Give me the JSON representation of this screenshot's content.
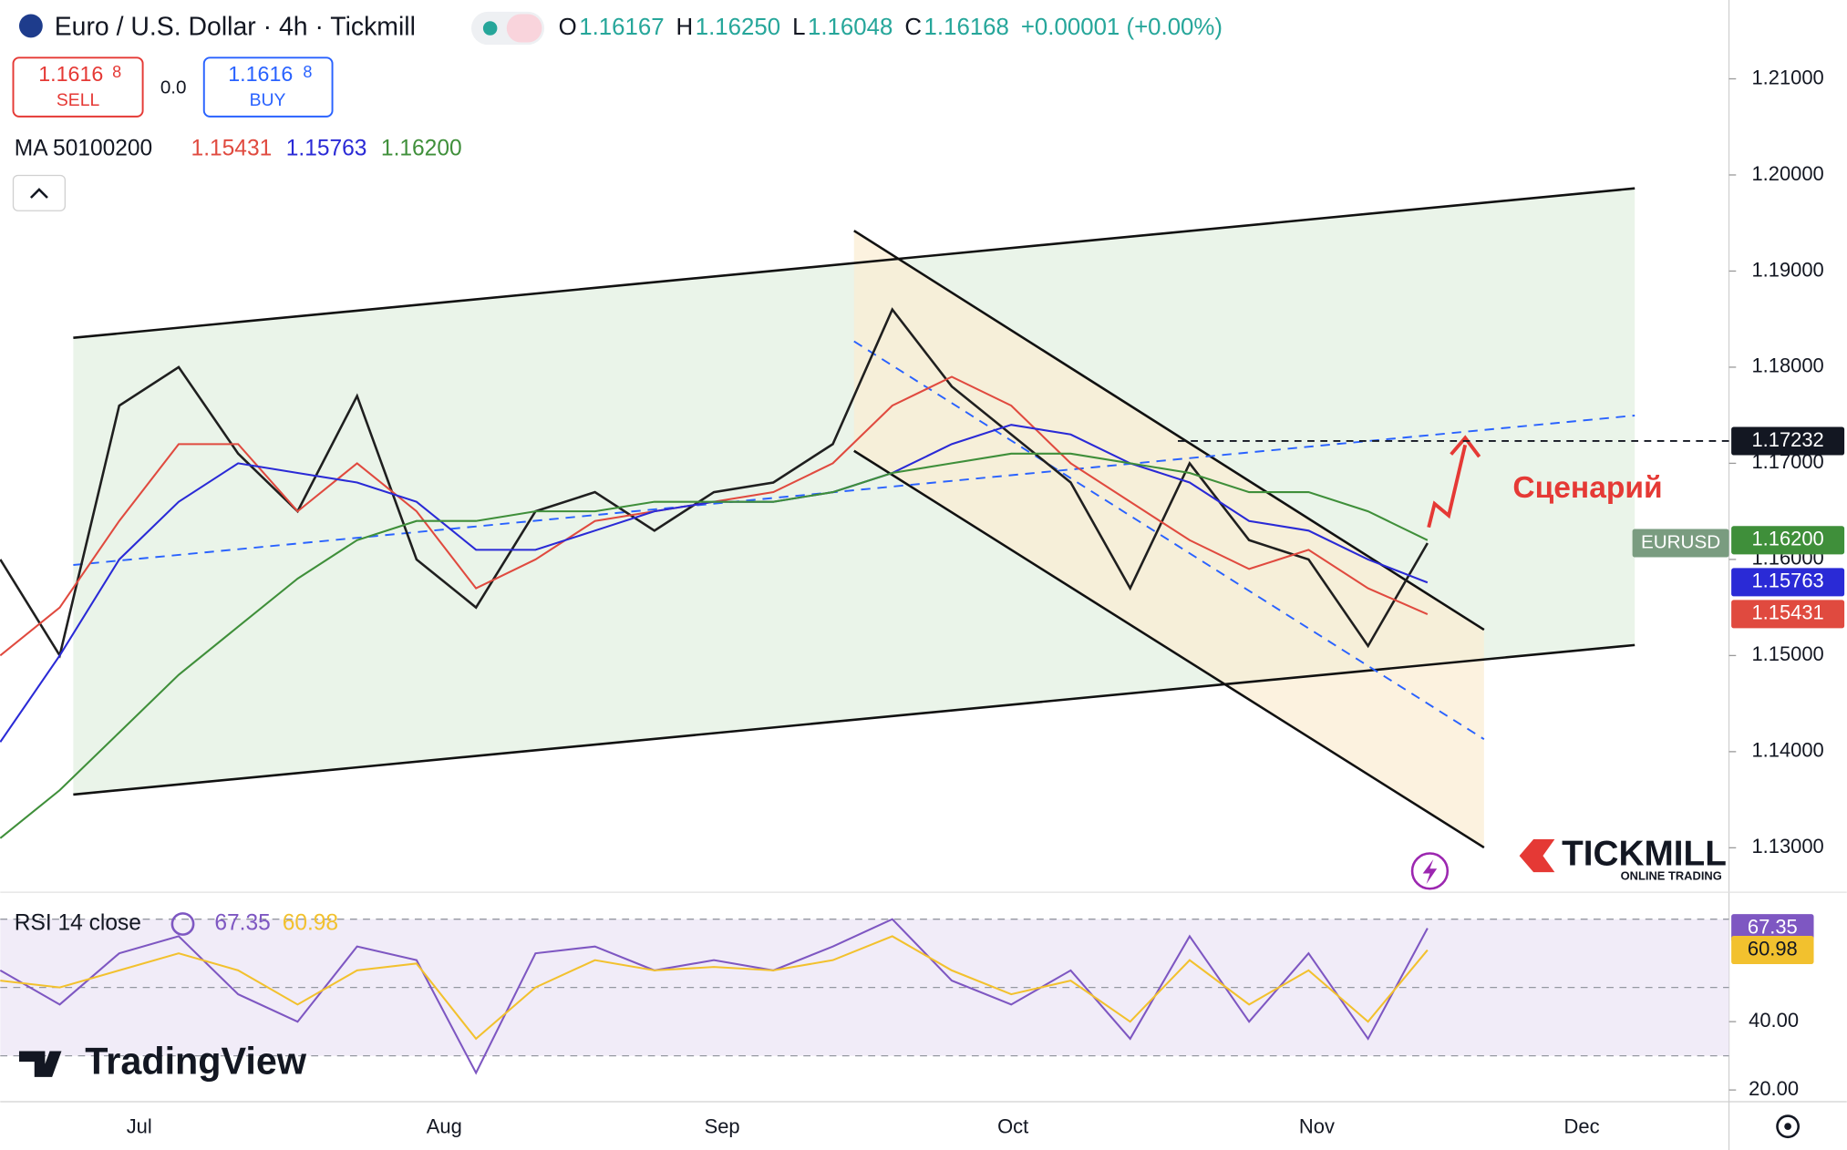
{
  "header": {
    "title": "Euro / U.S. Dollar · 4h · Tickmill",
    "ohlc": [
      {
        "label": "O",
        "value": "1.16167"
      },
      {
        "label": "H",
        "value": "1.16250"
      },
      {
        "label": "L",
        "value": "1.16048"
      },
      {
        "label": "C",
        "value": "1.16168"
      }
    ],
    "change": "+0.00001 (+0.00%)",
    "sell": {
      "price": "1.1616",
      "pip": "8",
      "label": "SELL"
    },
    "spread": "0.0",
    "buy": {
      "price": "1.1616",
      "pip": "8",
      "label": "BUY"
    },
    "ma_label": "MA 50100200"
  },
  "annotation": "Сценарий",
  "symbol_tag": "EURUSD",
  "logos": {
    "broker": "TICKMILL",
    "broker_sub": "ONLINE TRADING",
    "platform": "TradingView"
  },
  "chart_data": [
    {
      "type": "line",
      "ylim": [
        1.1255,
        1.2182
      ],
      "yticks": [
        {
          "value": 1.21,
          "label": "1.21000"
        },
        {
          "value": 1.2,
          "label": "1.20000"
        },
        {
          "value": 1.19,
          "label": "1.19000"
        },
        {
          "value": 1.18,
          "label": "1.18000"
        },
        {
          "value": 1.17,
          "label": "1.17000"
        },
        {
          "value": 1.16,
          "label": "1.16000"
        },
        {
          "value": 1.15,
          "label": "1.15000"
        },
        {
          "value": 1.14,
          "label": "1.14000"
        },
        {
          "value": 1.13,
          "label": "1.13000"
        }
      ],
      "time_labels": [
        "Jul",
        "Aug",
        "Sep",
        "Oct",
        "Nov",
        "Dec"
      ],
      "level": {
        "value": 1.17232,
        "label": "1.17232"
      },
      "series": [
        {
          "name": "EURUSD",
          "color": "#1f1f1f",
          "values": [
            1.16,
            1.15,
            1.176,
            1.18,
            1.171,
            1.165,
            1.177,
            1.16,
            1.155,
            1.165,
            1.167,
            1.163,
            1.167,
            1.168,
            1.172,
            1.186,
            1.178,
            1.173,
            1.168,
            1.157,
            1.17,
            1.162,
            1.16,
            1.151,
            1.1617
          ]
        },
        {
          "name": "MA 50",
          "color": "#e04a3f",
          "last": {
            "value": 1.15431,
            "label": "1.15431"
          },
          "values": [
            1.15,
            1.155,
            1.164,
            1.172,
            1.172,
            1.165,
            1.17,
            1.165,
            1.157,
            1.16,
            1.164,
            1.165,
            1.166,
            1.167,
            1.17,
            1.176,
            1.179,
            1.176,
            1.17,
            1.166,
            1.162,
            1.159,
            1.161,
            1.157,
            1.1543
          ]
        },
        {
          "name": "MA 100",
          "color": "#2a2ad6",
          "last": {
            "value": 1.15763,
            "label": "1.15763"
          },
          "values": [
            1.141,
            1.15,
            1.16,
            1.166,
            1.17,
            1.169,
            1.168,
            1.166,
            1.161,
            1.161,
            1.163,
            1.165,
            1.166,
            1.166,
            1.167,
            1.169,
            1.172,
            1.174,
            1.173,
            1.17,
            1.168,
            1.164,
            1.163,
            1.16,
            1.1576
          ]
        },
        {
          "name": "MA 200",
          "color": "#3f8f3a",
          "last": {
            "value": 1.162,
            "label": "1.16200"
          },
          "values": [
            1.131,
            1.136,
            1.142,
            1.148,
            1.153,
            1.158,
            1.162,
            1.164,
            1.164,
            1.165,
            1.165,
            1.166,
            1.166,
            1.166,
            1.167,
            1.169,
            1.17,
            1.171,
            1.171,
            1.17,
            1.169,
            1.167,
            1.167,
            1.165,
            1.162
          ]
        }
      ]
    },
    {
      "type": "line",
      "title": "RSI 14 close",
      "ylim": [
        16.9,
        77.2
      ],
      "yticks": [
        {
          "value": 40,
          "label": "40.00"
        },
        {
          "value": 20,
          "label": "20.00"
        }
      ],
      "bands": [
        30,
        50,
        70
      ],
      "series": [
        {
          "name": "RSI",
          "color": "#7e57c2",
          "last": {
            "value": 67.35,
            "label": "67.35"
          },
          "values": [
            55,
            45,
            60,
            65,
            48,
            40,
            62,
            58,
            25,
            60,
            62,
            55,
            58,
            55,
            62,
            70,
            52,
            45,
            55,
            35,
            65,
            40,
            60,
            35,
            67.35
          ]
        },
        {
          "name": "RSI MA",
          "color": "#f2c12e",
          "last": {
            "value": 60.98,
            "label": "60.98"
          },
          "values": [
            52,
            50,
            55,
            60,
            55,
            45,
            55,
            57,
            35,
            50,
            58,
            55,
            56,
            55,
            58,
            65,
            55,
            48,
            52,
            40,
            58,
            45,
            55,
            40,
            60.98
          ]
        }
      ]
    }
  ]
}
